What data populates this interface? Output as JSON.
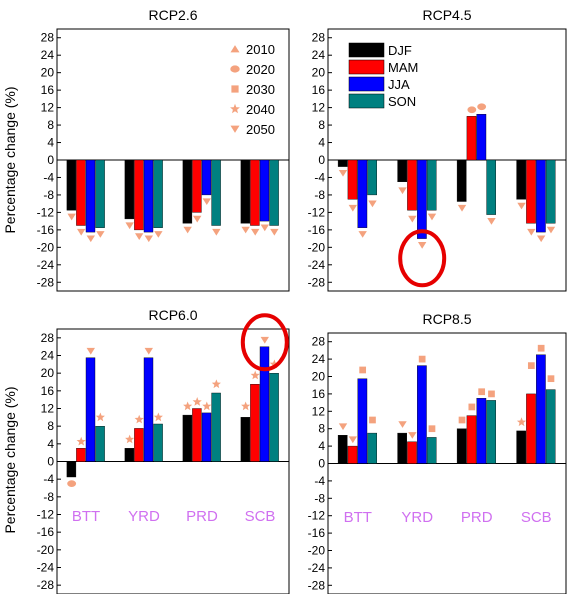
{
  "figure": {
    "ylabel": "Percentage change (%)",
    "regions": [
      "BTT",
      "YRD",
      "PRD",
      "SCB"
    ],
    "yticks": [
      28,
      24,
      20,
      16,
      12,
      8,
      4,
      0,
      -4,
      -8,
      -12,
      -16,
      -20,
      -24,
      -28
    ],
    "colors": {
      "DJF": "#000000",
      "MAM": "#ff0000",
      "JJA": "#0000ff",
      "SON": "#008080",
      "marker": "#f4a27e",
      "highlight": "#e60000",
      "category_label": "#d070f0"
    },
    "bar_legend": [
      {
        "label": "DJF",
        "color": "#000000"
      },
      {
        "label": "MAM",
        "color": "#ff0000"
      },
      {
        "label": "JJA",
        "color": "#0000ff"
      },
      {
        "label": "SON",
        "color": "#008080"
      }
    ],
    "marker_legend": [
      {
        "label": "2010",
        "shape": "triangle-up"
      },
      {
        "label": "2020",
        "shape": "circle"
      },
      {
        "label": "2030",
        "shape": "square"
      },
      {
        "label": "2040",
        "shape": "star"
      },
      {
        "label": "2050",
        "shape": "triangle-down"
      }
    ]
  },
  "chart_data": [
    {
      "title": "RCP2.6",
      "type": "bar",
      "ylim": [
        -30,
        30
      ],
      "categories": [
        "BTT",
        "YRD",
        "PRD",
        "SCB"
      ],
      "series": [
        {
          "name": "DJF",
          "values": [
            -11.5,
            -13.5,
            -14.5,
            -14.5
          ]
        },
        {
          "name": "MAM",
          "values": [
            -15,
            -16,
            -12,
            -15
          ]
        },
        {
          "name": "JJA",
          "values": [
            -16.5,
            -16.5,
            -8,
            -14
          ]
        },
        {
          "name": "SON",
          "values": [
            -15.5,
            -15.5,
            -15,
            -15
          ]
        }
      ],
      "markers": [
        {
          "shape": "triangle-down",
          "series": "DJF",
          "cat": 0,
          "y": -13
        },
        {
          "shape": "triangle-down",
          "series": "MAM",
          "cat": 0,
          "y": -16.5
        },
        {
          "shape": "triangle-down",
          "series": "JJA",
          "cat": 0,
          "y": -18
        },
        {
          "shape": "triangle-down",
          "series": "SON",
          "cat": 0,
          "y": -17
        },
        {
          "shape": "triangle-down",
          "series": "DJF",
          "cat": 1,
          "y": -15
        },
        {
          "shape": "triangle-down",
          "series": "MAM",
          "cat": 1,
          "y": -17.5
        },
        {
          "shape": "triangle-down",
          "series": "JJA",
          "cat": 1,
          "y": -18
        },
        {
          "shape": "triangle-down",
          "series": "SON",
          "cat": 1,
          "y": -17
        },
        {
          "shape": "triangle-down",
          "series": "DJF",
          "cat": 2,
          "y": -16
        },
        {
          "shape": "triangle-down",
          "series": "MAM",
          "cat": 2,
          "y": -13.5
        },
        {
          "shape": "triangle-down",
          "series": "JJA",
          "cat": 2,
          "y": -9.5
        },
        {
          "shape": "triangle-down",
          "series": "SON",
          "cat": 2,
          "y": -16.5
        },
        {
          "shape": "triangle-down",
          "series": "DJF",
          "cat": 3,
          "y": -16
        },
        {
          "shape": "triangle-down",
          "series": "MAM",
          "cat": 3,
          "y": -16.5
        },
        {
          "shape": "triangle-down",
          "series": "JJA",
          "cat": 3,
          "y": -15.5
        },
        {
          "shape": "triangle-down",
          "series": "SON",
          "cat": 3,
          "y": -16.5
        }
      ],
      "legend": "markers"
    },
    {
      "title": "RCP4.5",
      "type": "bar",
      "ylim": [
        -30,
        30
      ],
      "categories": [
        "BTT",
        "YRD",
        "PRD",
        "SCB"
      ],
      "series": [
        {
          "name": "DJF",
          "values": [
            -1.5,
            -5,
            -9.5,
            -9
          ]
        },
        {
          "name": "MAM",
          "values": [
            -9,
            -11.5,
            10,
            -14.5
          ]
        },
        {
          "name": "JJA",
          "values": [
            -15.5,
            -18,
            10.5,
            -16.5
          ]
        },
        {
          "name": "SON",
          "values": [
            -8,
            -11.5,
            -12.5,
            -14.5
          ]
        }
      ],
      "markers": [
        {
          "shape": "triangle-down",
          "series": "DJF",
          "cat": 0,
          "y": -3
        },
        {
          "shape": "triangle-down",
          "series": "MAM",
          "cat": 0,
          "y": -11
        },
        {
          "shape": "triangle-down",
          "series": "JJA",
          "cat": 0,
          "y": -17
        },
        {
          "shape": "triangle-down",
          "series": "SON",
          "cat": 0,
          "y": -10
        },
        {
          "shape": "triangle-down",
          "series": "DJF",
          "cat": 1,
          "y": -7
        },
        {
          "shape": "triangle-down",
          "series": "MAM",
          "cat": 1,
          "y": -13.5
        },
        {
          "shape": "triangle-down",
          "series": "JJA",
          "cat": 1,
          "y": -19.5
        },
        {
          "shape": "triangle-down",
          "series": "SON",
          "cat": 1,
          "y": -13
        },
        {
          "shape": "triangle-down",
          "series": "DJF",
          "cat": 2,
          "y": -11
        },
        {
          "shape": "circle",
          "series": "MAM",
          "cat": 2,
          "y": 11.5
        },
        {
          "shape": "circle",
          "series": "JJA",
          "cat": 2,
          "y": 12.2
        },
        {
          "shape": "triangle-down",
          "series": "SON",
          "cat": 2,
          "y": -14
        },
        {
          "shape": "triangle-down",
          "series": "DJF",
          "cat": 3,
          "y": -10.5
        },
        {
          "shape": "triangle-down",
          "series": "MAM",
          "cat": 3,
          "y": -16.5
        },
        {
          "shape": "triangle-down",
          "series": "JJA",
          "cat": 3,
          "y": -18
        },
        {
          "shape": "triangle-down",
          "series": "SON",
          "cat": 3,
          "y": -16
        }
      ],
      "legend": "bars",
      "highlight": {
        "cat": 1,
        "y": -18.5
      }
    },
    {
      "title": "RCP6.0",
      "type": "bar",
      "ylim": [
        -30,
        30
      ],
      "categories": [
        "BTT",
        "YRD",
        "PRD",
        "SCB"
      ],
      "series": [
        {
          "name": "DJF",
          "values": [
            -3.5,
            3,
            10.5,
            10
          ]
        },
        {
          "name": "MAM",
          "values": [
            3,
            7.5,
            12,
            17.5
          ]
        },
        {
          "name": "JJA",
          "values": [
            23.5,
            23.5,
            11,
            26
          ]
        },
        {
          "name": "SON",
          "values": [
            8,
            8.5,
            15.5,
            20
          ]
        }
      ],
      "markers": [
        {
          "shape": "circle",
          "series": "DJF",
          "cat": 0,
          "y": -5
        },
        {
          "shape": "star",
          "series": "MAM",
          "cat": 0,
          "y": 4.5
        },
        {
          "shape": "triangle-down",
          "series": "JJA",
          "cat": 0,
          "y": 25
        },
        {
          "shape": "star",
          "series": "SON",
          "cat": 0,
          "y": 10
        },
        {
          "shape": "star",
          "series": "DJF",
          "cat": 1,
          "y": 5
        },
        {
          "shape": "star",
          "series": "MAM",
          "cat": 1,
          "y": 9.5
        },
        {
          "shape": "triangle-down",
          "series": "JJA",
          "cat": 1,
          "y": 25
        },
        {
          "shape": "star",
          "series": "SON",
          "cat": 1,
          "y": 10
        },
        {
          "shape": "star",
          "series": "DJF",
          "cat": 2,
          "y": 12.5
        },
        {
          "shape": "star",
          "series": "MAM",
          "cat": 2,
          "y": 13.5
        },
        {
          "shape": "star",
          "series": "JJA",
          "cat": 2,
          "y": 12.5
        },
        {
          "shape": "star",
          "series": "SON",
          "cat": 2,
          "y": 17.5
        },
        {
          "shape": "star",
          "series": "DJF",
          "cat": 3,
          "y": 12.5
        },
        {
          "shape": "star",
          "series": "MAM",
          "cat": 3,
          "y": 19.5
        },
        {
          "shape": "triangle-down",
          "series": "JJA",
          "cat": 3,
          "y": 27.5
        },
        {
          "shape": "star",
          "series": "SON",
          "cat": 3,
          "y": 22
        }
      ],
      "highlight": {
        "cat": 3,
        "y": 27
      }
    },
    {
      "title": "RCP8.5",
      "type": "bar",
      "ylim": [
        -30,
        30
      ],
      "categories": [
        "BTT",
        "YRD",
        "PRD",
        "SCB"
      ],
      "series": [
        {
          "name": "DJF",
          "values": [
            6.5,
            7,
            8,
            7.5
          ]
        },
        {
          "name": "MAM",
          "values": [
            4,
            5,
            11,
            16
          ]
        },
        {
          "name": "JJA",
          "values": [
            19.5,
            22.5,
            15,
            25
          ]
        },
        {
          "name": "SON",
          "values": [
            7,
            6,
            14.5,
            17
          ]
        }
      ],
      "markers": [
        {
          "shape": "triangle-down",
          "series": "DJF",
          "cat": 0,
          "y": 8.5
        },
        {
          "shape": "triangle-down",
          "series": "MAM",
          "cat": 0,
          "y": 5.5
        },
        {
          "shape": "square",
          "series": "JJA",
          "cat": 0,
          "y": 21.5
        },
        {
          "shape": "square",
          "series": "SON",
          "cat": 0,
          "y": 10
        },
        {
          "shape": "triangle-down",
          "series": "DJF",
          "cat": 1,
          "y": 9
        },
        {
          "shape": "triangle-down",
          "series": "MAM",
          "cat": 1,
          "y": 6.5
        },
        {
          "shape": "square",
          "series": "JJA",
          "cat": 1,
          "y": 24
        },
        {
          "shape": "square",
          "series": "SON",
          "cat": 1,
          "y": 8
        },
        {
          "shape": "square",
          "series": "DJF",
          "cat": 2,
          "y": 10
        },
        {
          "shape": "square",
          "series": "MAM",
          "cat": 2,
          "y": 13
        },
        {
          "shape": "square",
          "series": "JJA",
          "cat": 2,
          "y": 16.5
        },
        {
          "shape": "square",
          "series": "SON",
          "cat": 2,
          "y": 16
        },
        {
          "shape": "star",
          "series": "DJF",
          "cat": 3,
          "y": 9.5
        },
        {
          "shape": "square",
          "series": "MAM",
          "cat": 3,
          "y": 22.5
        },
        {
          "shape": "square",
          "series": "JJA",
          "cat": 3,
          "y": 26.5
        },
        {
          "shape": "square",
          "series": "SON",
          "cat": 3,
          "y": 19.5
        }
      ]
    }
  ]
}
